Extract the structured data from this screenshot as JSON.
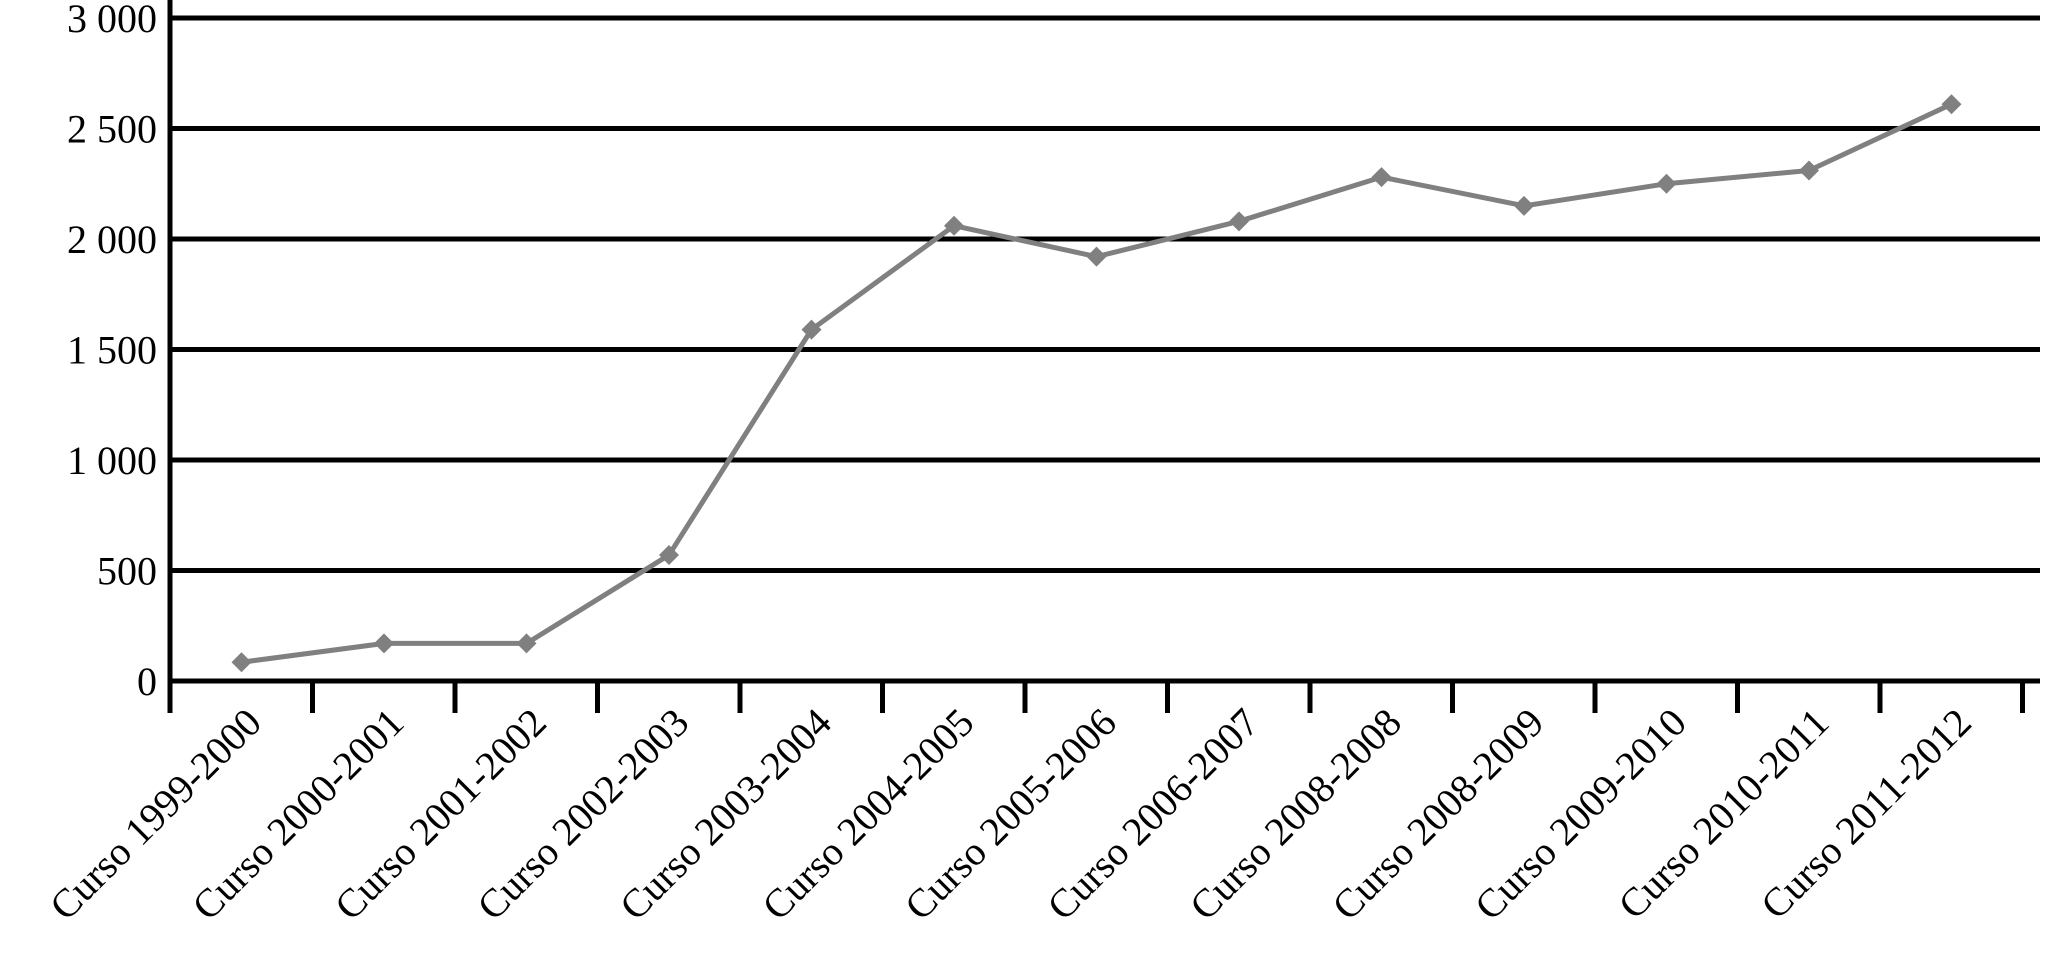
{
  "chart_data": {
    "type": "line",
    "title": "",
    "xlabel": "",
    "ylabel": "",
    "ylim": [
      0,
      3000
    ],
    "yticks": [
      0,
      500,
      1000,
      1500,
      2000,
      2500,
      3000
    ],
    "ytick_labels": [
      "0",
      "500",
      "1 000",
      "1 500",
      "2 000",
      "2 500",
      "3 000"
    ],
    "grid": true,
    "legend": "none",
    "categories": [
      "Curso 1999-2000",
      "Curso 2000-2001",
      "Curso 2001-2002",
      "Curso 2002-2003",
      "Curso 2003-2004",
      "Curso 2004-2005",
      "Curso 2005-2006",
      "Curso 2006-2007",
      "Curso 2008-2008",
      "Curso 2008-2009",
      "Curso 2009-2010",
      "Curso 2010-2011",
      "Curso 2011-2012"
    ],
    "series": [
      {
        "values": [
          85,
          170,
          170,
          570,
          1590,
          2060,
          1920,
          2080,
          2280,
          2150,
          2250,
          2310,
          2610
        ],
        "color": "#808080",
        "marker": "diamond"
      }
    ]
  }
}
